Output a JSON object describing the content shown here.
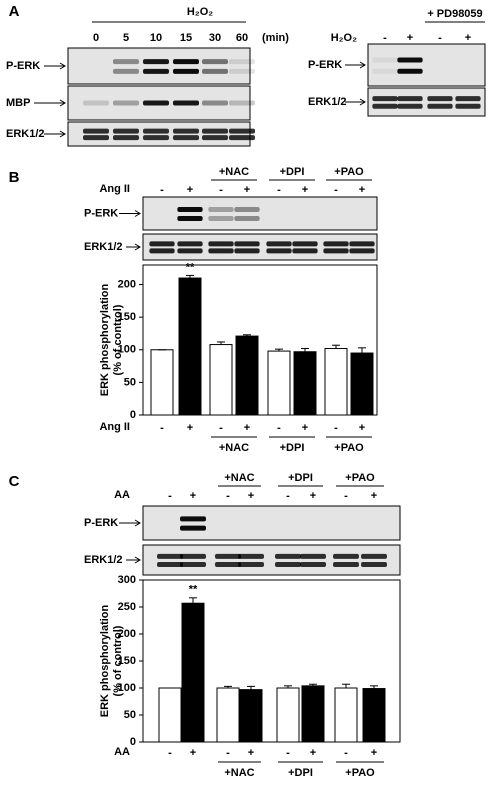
{
  "panel_a": {
    "label": "A",
    "left": {
      "treatment": "H₂O₂",
      "times": [
        "0",
        "5",
        "10",
        "15",
        "30",
        "60"
      ],
      "unit": "(min)",
      "blots": [
        "P-ERK",
        "MBP",
        "ERK1/2"
      ]
    },
    "right": {
      "inhibitor": "+ PD98059",
      "treatment": "H₂O₂",
      "signs": [
        "-",
        "+",
        "-",
        "+"
      ],
      "blots": [
        "P-ERK",
        "ERK1/2"
      ]
    }
  },
  "chart_data": [
    {
      "type": "bar",
      "panel": "B",
      "treatment": "Ang II",
      "categories": [
        "-",
        "+",
        "-",
        "+",
        "-",
        "+",
        "-",
        "+"
      ],
      "groups": [
        "+NAC",
        "+DPI",
        "+PAO"
      ],
      "blots": [
        "P-ERK",
        "ERK1/2"
      ],
      "y_label": [
        "ERK phosphorylation",
        "(% of control)"
      ],
      "values": [
        100,
        210,
        108,
        121,
        98,
        97,
        102,
        95
      ],
      "errors": [
        0,
        4,
        4,
        2,
        3,
        5,
        5,
        8
      ],
      "colors": [
        "#ffffff",
        "#000000",
        "#ffffff",
        "#000000",
        "#ffffff",
        "#000000",
        "#ffffff",
        "#000000"
      ],
      "annotations": [
        {
          "text": "**",
          "bar": 1
        }
      ],
      "ylim": [
        0,
        230
      ],
      "yticks": [
        0,
        50,
        100,
        150,
        200
      ]
    },
    {
      "type": "bar",
      "panel": "C",
      "treatment": "AA",
      "categories": [
        "-",
        "+",
        "-",
        "+",
        "-",
        "+",
        "-",
        "+"
      ],
      "groups": [
        "+NAC",
        "+DPI",
        "+PAO"
      ],
      "blots": [
        "P-ERK",
        "ERK1/2"
      ],
      "y_label": [
        "ERK phosphorylation",
        "(% of control)"
      ],
      "values": [
        100,
        257,
        100,
        97,
        100,
        104,
        100,
        99
      ],
      "errors": [
        0,
        10,
        3,
        6,
        4,
        3,
        7,
        5
      ],
      "colors": [
        "#ffffff",
        "#000000",
        "#ffffff",
        "#000000",
        "#ffffff",
        "#000000",
        "#ffffff",
        "#000000"
      ],
      "annotations": [
        {
          "text": "**",
          "bar": 1
        }
      ],
      "ylim": [
        0,
        300
      ],
      "yticks": [
        0,
        50,
        100,
        150,
        200,
        250,
        300
      ]
    }
  ]
}
